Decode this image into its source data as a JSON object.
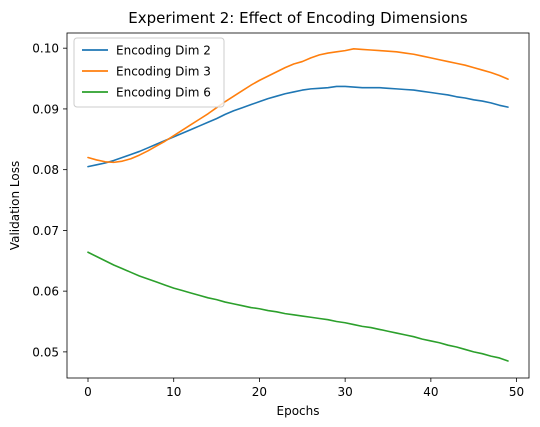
{
  "chart_data": {
    "type": "line",
    "title": "Experiment 2: Effect of Encoding Dimensions",
    "xlabel": "Epochs",
    "ylabel": "Validation Loss",
    "xlim": [
      -2.45,
      51.45
    ],
    "ylim": [
      0.0457,
      0.1025
    ],
    "xticks": [
      0,
      10,
      20,
      30,
      40,
      50
    ],
    "yticks": [
      0.05,
      0.06,
      0.07,
      0.08,
      0.09,
      0.1
    ],
    "ytick_labels": [
      "0.05",
      "0.06",
      "0.07",
      "0.08",
      "0.09",
      "0.10"
    ],
    "grid": false,
    "legend_position": "upper left",
    "x": [
      0,
      1,
      2,
      3,
      4,
      5,
      6,
      7,
      8,
      9,
      10,
      11,
      12,
      13,
      14,
      15,
      16,
      17,
      18,
      19,
      20,
      21,
      22,
      23,
      24,
      25,
      26,
      27,
      28,
      29,
      30,
      31,
      32,
      33,
      34,
      35,
      36,
      37,
      38,
      39,
      40,
      41,
      42,
      43,
      44,
      45,
      46,
      47,
      48,
      49
    ],
    "series": [
      {
        "name": "Encoding Dim 2",
        "color": "#1f77b4",
        "values": [
          0.0805,
          0.0808,
          0.0811,
          0.0815,
          0.082,
          0.0825,
          0.083,
          0.0836,
          0.0842,
          0.0848,
          0.0854,
          0.086,
          0.0866,
          0.0872,
          0.0878,
          0.0884,
          0.0891,
          0.0897,
          0.0902,
          0.0907,
          0.0912,
          0.0917,
          0.0921,
          0.0925,
          0.0928,
          0.0931,
          0.0933,
          0.0934,
          0.0935,
          0.0937,
          0.0937,
          0.0936,
          0.0935,
          0.0935,
          0.0935,
          0.0934,
          0.0933,
          0.0932,
          0.0931,
          0.0929,
          0.0927,
          0.0925,
          0.0923,
          0.092,
          0.0918,
          0.0915,
          0.0913,
          0.091,
          0.0906,
          0.0903
        ]
      },
      {
        "name": "Encoding Dim 3",
        "color": "#ff7f0e",
        "values": [
          0.082,
          0.0816,
          0.0813,
          0.0812,
          0.0814,
          0.0818,
          0.0824,
          0.0831,
          0.0839,
          0.0847,
          0.0856,
          0.0865,
          0.0874,
          0.0883,
          0.0892,
          0.0902,
          0.0912,
          0.0921,
          0.093,
          0.0939,
          0.0947,
          0.0954,
          0.0961,
          0.0968,
          0.0974,
          0.0978,
          0.0984,
          0.0989,
          0.0992,
          0.0994,
          0.0996,
          0.0999,
          0.0998,
          0.0997,
          0.0996,
          0.0995,
          0.0994,
          0.0992,
          0.099,
          0.0987,
          0.0984,
          0.0981,
          0.0978,
          0.0975,
          0.0972,
          0.0968,
          0.0964,
          0.096,
          0.0955,
          0.0949
        ]
      },
      {
        "name": "Encoding Dim 6",
        "color": "#2ca02c",
        "values": [
          0.0664,
          0.0657,
          0.065,
          0.0643,
          0.0637,
          0.0631,
          0.0625,
          0.062,
          0.0615,
          0.061,
          0.0605,
          0.0601,
          0.0597,
          0.0593,
          0.0589,
          0.0586,
          0.0582,
          0.0579,
          0.0576,
          0.0573,
          0.0571,
          0.0568,
          0.0566,
          0.0563,
          0.0561,
          0.0559,
          0.0557,
          0.0555,
          0.0553,
          0.055,
          0.0548,
          0.0545,
          0.0542,
          0.054,
          0.0537,
          0.0534,
          0.0531,
          0.0528,
          0.0525,
          0.0521,
          0.0518,
          0.0515,
          0.0511,
          0.0508,
          0.0504,
          0.05,
          0.0497,
          0.0493,
          0.049,
          0.0485
        ]
      }
    ]
  }
}
